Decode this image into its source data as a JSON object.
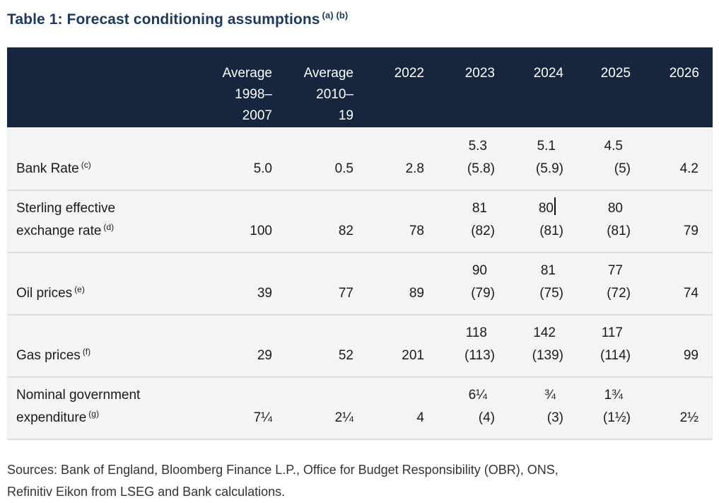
{
  "title": {
    "text": "Table 1: Forecast conditioning assumptions",
    "footnote_refs": "(a) (b)"
  },
  "table": {
    "headers": [
      "",
      "Average\n1998–\n2007",
      "Average\n2010–\n19",
      "2022",
      "2023",
      "2024",
      "2025",
      "2026"
    ],
    "rows": [
      {
        "label": "Bank Rate",
        "footnote": "(c)",
        "cells": [
          {
            "top": "",
            "bottom": "5.0"
          },
          {
            "top": "",
            "bottom": "0.5"
          },
          {
            "top": "",
            "bottom": "2.8"
          },
          {
            "top": "5.3",
            "bottom": "(5.8)"
          },
          {
            "top": "5.1",
            "bottom": "(5.9)"
          },
          {
            "top": "4.5",
            "bottom": "(5)"
          },
          {
            "top": "",
            "bottom": "4.2"
          }
        ]
      },
      {
        "label": "Sterling effective\nexchange rate",
        "footnote": "(d)",
        "cells": [
          {
            "top": "",
            "bottom": "100"
          },
          {
            "top": "",
            "bottom": "82"
          },
          {
            "top": "",
            "bottom": "78"
          },
          {
            "top": "81",
            "bottom": "(82)"
          },
          {
            "top": "80",
            "bottom": "(81)"
          },
          {
            "top": "80",
            "bottom": "(81)"
          },
          {
            "top": "",
            "bottom": "79"
          }
        ]
      },
      {
        "label": "Oil prices",
        "footnote": "(e)",
        "cells": [
          {
            "top": "",
            "bottom": "39"
          },
          {
            "top": "",
            "bottom": "77"
          },
          {
            "top": "",
            "bottom": "89"
          },
          {
            "top": "90",
            "bottom": "(79)"
          },
          {
            "top": "81",
            "bottom": "(75)"
          },
          {
            "top": "77",
            "bottom": "(72)"
          },
          {
            "top": "",
            "bottom": "74"
          }
        ]
      },
      {
        "label": "Gas prices",
        "footnote": "(f)",
        "cells": [
          {
            "top": "",
            "bottom": "29"
          },
          {
            "top": "",
            "bottom": "52"
          },
          {
            "top": "",
            "bottom": "201"
          },
          {
            "top": "118",
            "bottom": "(113)"
          },
          {
            "top": "142",
            "bottom": "(139)"
          },
          {
            "top": "117",
            "bottom": "(114)"
          },
          {
            "top": "",
            "bottom": "99"
          }
        ]
      },
      {
        "label": "Nominal government\nexpenditure",
        "footnote": "(g)",
        "cells": [
          {
            "top": "",
            "bottom": "7¼"
          },
          {
            "top": "",
            "bottom": "2¼"
          },
          {
            "top": "",
            "bottom": "4"
          },
          {
            "top": "6¼",
            "bottom": "(4)"
          },
          {
            "top": "¾",
            "bottom": "(3)"
          },
          {
            "top": "1¾",
            "bottom": "(1½)"
          },
          {
            "top": "",
            "bottom": "2½"
          }
        ]
      }
    ]
  },
  "sources": "Sources: Bank of England, Bloomberg Finance L.P., Office for Budget Responsibility (OBR), ONS,\nRefinitiv Eikon from LSEG and Bank calculations.",
  "colors": {
    "header_bg": "#16263e",
    "title": "#1c3a61",
    "row_bg": "#f3f4f5",
    "separator": "#dcdee0"
  }
}
